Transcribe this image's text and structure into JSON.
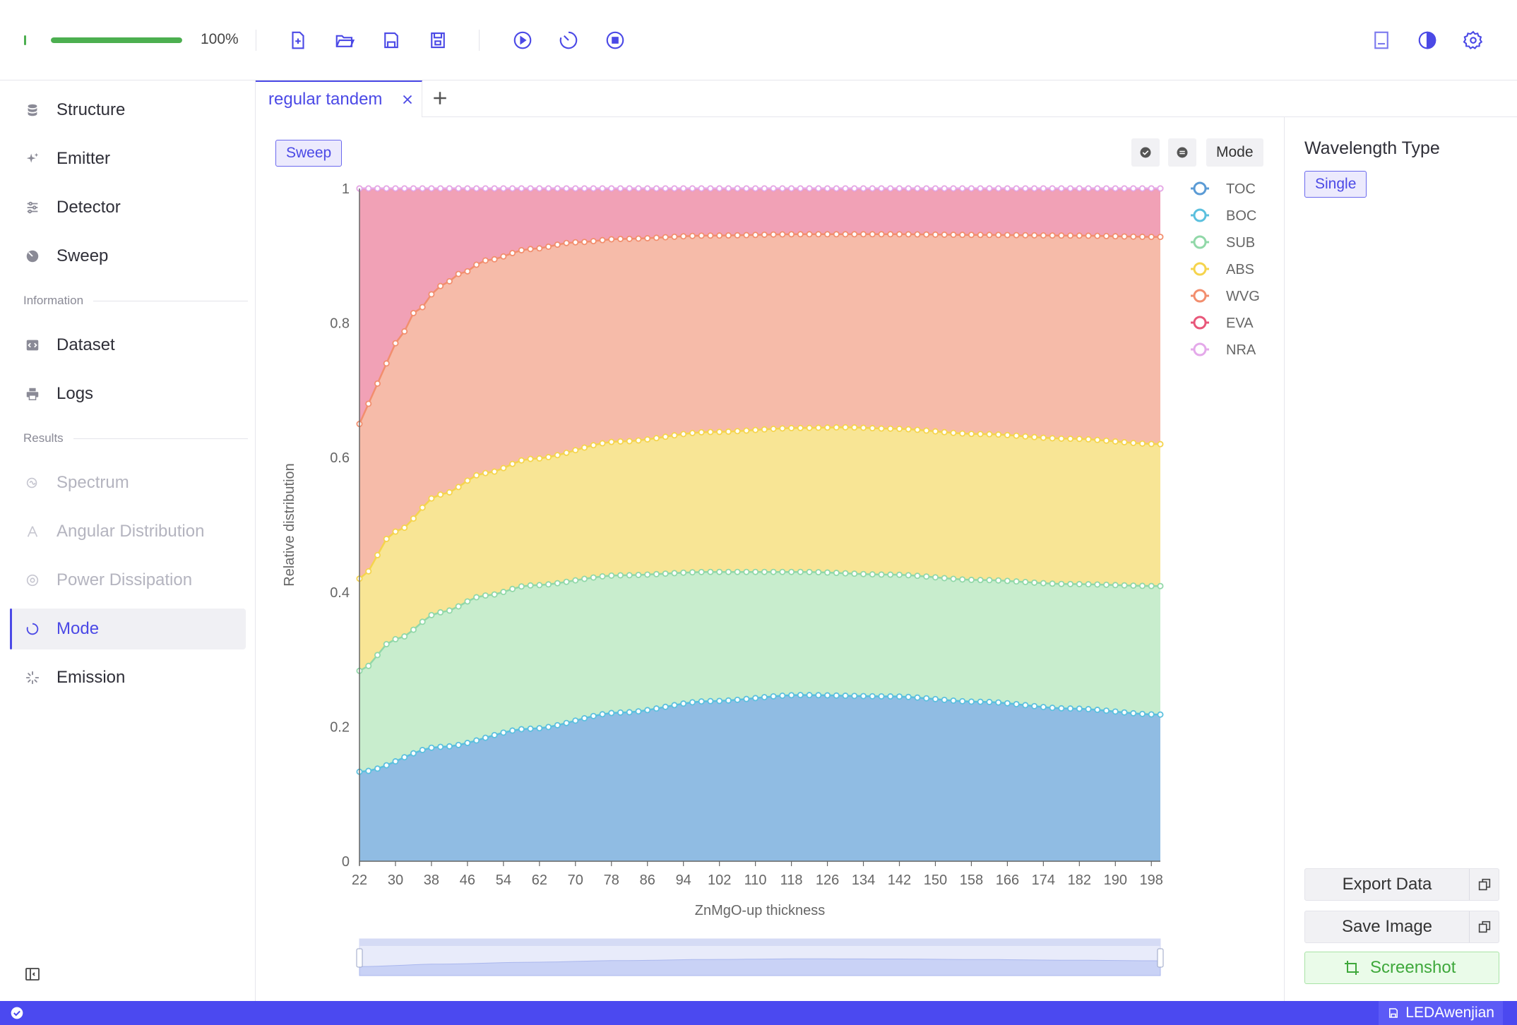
{
  "toolbar": {
    "progress_value": 1.0,
    "progress_text": "100%",
    "icons": [
      "new-file-icon",
      "open-folder-icon",
      "save-icon",
      "save-as-icon",
      "run-icon",
      "timer-icon",
      "stop-icon",
      "book-icon",
      "theme-icon",
      "settings-icon"
    ]
  },
  "sidebar": {
    "items": [
      {
        "label": "Structure",
        "icon": "database-icon",
        "state": "normal"
      },
      {
        "label": "Emitter",
        "icon": "sparkle-icon",
        "state": "normal"
      },
      {
        "label": "Detector",
        "icon": "sliders-icon",
        "state": "normal"
      },
      {
        "label": "Sweep",
        "icon": "sweep-icon",
        "state": "normal"
      }
    ],
    "section_information": "Information",
    "info_items": [
      {
        "label": "Dataset",
        "icon": "code-icon",
        "state": "normal"
      },
      {
        "label": "Logs",
        "icon": "printer-icon",
        "state": "normal"
      }
    ],
    "section_results": "Results",
    "result_items": [
      {
        "label": "Spectrum",
        "icon": "spectrum-icon",
        "state": "disabled"
      },
      {
        "label": "Angular Distribution",
        "icon": "angle-icon",
        "state": "disabled"
      },
      {
        "label": "Power Dissipation",
        "icon": "power-icon",
        "state": "disabled"
      },
      {
        "label": "Mode",
        "icon": "mode-icon",
        "state": "active"
      },
      {
        "label": "Emission",
        "icon": "emission-icon",
        "state": "normal"
      }
    ]
  },
  "tabs": {
    "active_label": "regular tandem",
    "add_label": "+"
  },
  "chart_controls": {
    "sweep_label": "Sweep",
    "mode_label": "Mode"
  },
  "chart_data": {
    "type": "area",
    "stacked": true,
    "xlabel": "ZnMgO-up thickness",
    "ylabel": "Relative distribution",
    "ylim": [
      0,
      1
    ],
    "yticks": [
      "0",
      "0.2",
      "0.4",
      "0.6",
      "0.8",
      "1"
    ],
    "xticks": [
      "22",
      "30",
      "38",
      "46",
      "54",
      "62",
      "70",
      "78",
      "86",
      "94",
      "102",
      "110",
      "118",
      "126",
      "134",
      "142",
      "150",
      "158",
      "166",
      "174",
      "182",
      "190",
      "198"
    ],
    "x_range": [
      22,
      200
    ],
    "x_step": 2,
    "legend_position": "right",
    "series": [
      {
        "name": "TOC",
        "color": "#5b9bd5",
        "fill": "#8ab8e2",
        "knots_x": [
          22,
          40,
          60,
          80,
          100,
          120,
          140,
          160,
          180,
          200
        ],
        "knots_y": [
          0.133,
          0.17,
          0.197,
          0.221,
          0.238,
          0.247,
          0.245,
          0.237,
          0.227,
          0.218
        ]
      },
      {
        "name": "BOC",
        "color": "#5bc0de",
        "fill": "#5bc0de",
        "knots_x": [
          22,
          40,
          60,
          80,
          100,
          120,
          140,
          160,
          180,
          200
        ],
        "knots_y": [
          0.133,
          0.17,
          0.197,
          0.221,
          0.238,
          0.247,
          0.245,
          0.237,
          0.227,
          0.218
        ]
      },
      {
        "name": "SUB",
        "color": "#91d8a8",
        "fill": "#c5ecca",
        "knots_x": [
          22,
          30,
          40,
          50,
          60,
          80,
          100,
          120,
          140,
          160,
          180,
          200
        ],
        "knots_y": [
          0.283,
          0.33,
          0.37,
          0.395,
          0.41,
          0.425,
          0.43,
          0.43,
          0.426,
          0.418,
          0.412,
          0.409
        ]
      },
      {
        "name": "ABS",
        "color": "#f5d44d",
        "fill": "#f8e48f",
        "knots_x": [
          22,
          30,
          40,
          50,
          60,
          80,
          100,
          120,
          130,
          140,
          160,
          180,
          200
        ],
        "knots_y": [
          0.42,
          0.49,
          0.545,
          0.577,
          0.598,
          0.624,
          0.638,
          0.644,
          0.645,
          0.643,
          0.635,
          0.628,
          0.62
        ]
      },
      {
        "name": "WVG",
        "color": "#f28e6e",
        "fill": "#f6b7a4",
        "knots_x": [
          22,
          26,
          30,
          35,
          40,
          45,
          50,
          60,
          70,
          80,
          100,
          120,
          140,
          160,
          180,
          200
        ],
        "knots_y": [
          0.65,
          0.71,
          0.77,
          0.82,
          0.855,
          0.875,
          0.893,
          0.91,
          0.92,
          0.925,
          0.93,
          0.932,
          0.932,
          0.931,
          0.93,
          0.928
        ]
      },
      {
        "name": "EVA",
        "color": "#e8577a",
        "fill": "#f09cb2",
        "knots_x": [
          22,
          200
        ],
        "knots_y": [
          1.0,
          1.0
        ]
      },
      {
        "name": "NRA",
        "color": "#e4a9ea",
        "fill": "#e4a9ea",
        "knots_x": [
          22,
          200
        ],
        "knots_y": [
          1.0,
          1.0
        ]
      }
    ]
  },
  "right_panel": {
    "title": "Wavelength Type",
    "type_button": "Single",
    "export_label": "Export Data",
    "save_label": "Save Image",
    "screenshot_label": "Screenshot"
  },
  "status": {
    "project_name": "LEDAwenjian"
  }
}
